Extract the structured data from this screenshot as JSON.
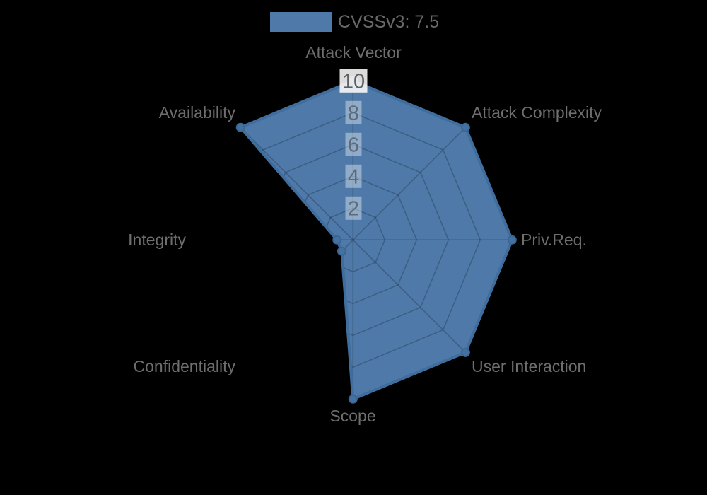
{
  "legend": {
    "label": "CVSSv3: 7.5",
    "position": "top"
  },
  "colors": {
    "background": "#000000",
    "series_fill": "#4e79a8",
    "series_border": "#3f6d9d",
    "marker_fill": "#44719f",
    "marker_border": "#3a6693",
    "grid_line": "rgba(0,0,0,0.22)",
    "axis_label_text": "#6e6e6e",
    "legend_text": "#696969",
    "tick_text": "#5c6b7c",
    "tick_text_outer": "#5f5f5f",
    "tick_backdrop": "rgba(255,255,255,0.38)",
    "tick_backdrop_outer": "rgba(250,250,250,0.88)"
  },
  "chart_data": {
    "type": "radar",
    "title": "",
    "legend_entries": [
      "CVSSv3: 7.5"
    ],
    "legend_position": "top",
    "categories": [
      "Attack Vector",
      "Attack Complexity",
      "Priv.Req.",
      "User Interaction",
      "Scope",
      "Confidentiality",
      "Integrity",
      "Availability"
    ],
    "series": [
      {
        "name": "CVSSv3: 7.5",
        "values": [
          10,
          10,
          10,
          10,
          10,
          1,
          1,
          10
        ]
      }
    ],
    "rlim": [
      0,
      10
    ],
    "tick_values": [
      2,
      4,
      6,
      8,
      10
    ],
    "grid": true,
    "grid_shape": "polygon",
    "axes_count": 8
  }
}
